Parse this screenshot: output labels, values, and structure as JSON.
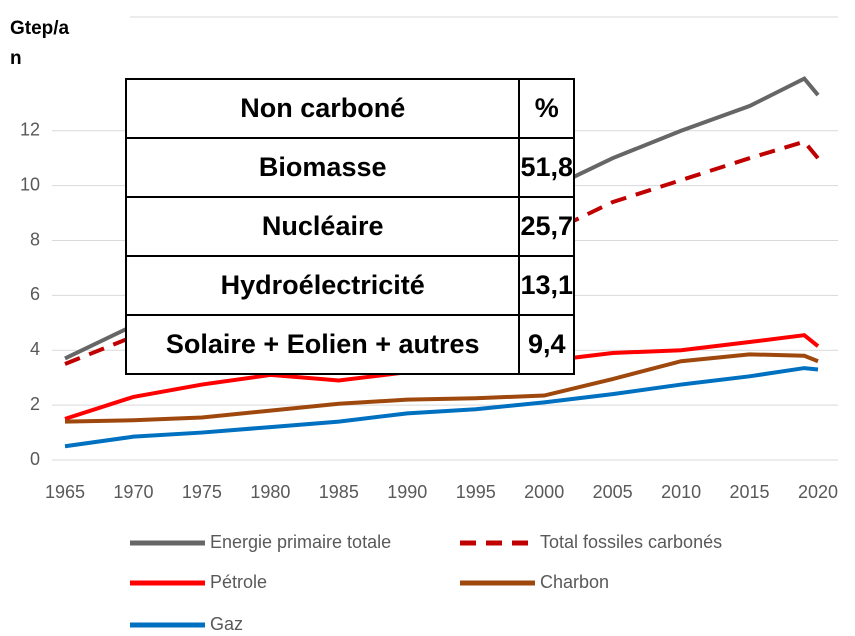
{
  "chart_data": {
    "type": "line",
    "y_label": "Gtep/an",
    "x": [
      1965,
      1970,
      1975,
      1980,
      1985,
      1990,
      1995,
      2000,
      2005,
      2010,
      2015,
      2019,
      2020
    ],
    "series": [
      {
        "name": "Energie primaire totale",
        "color": "#666666",
        "dash": false,
        "values": [
          3.7,
          4.9,
          5.8,
          6.8,
          7.5,
          8.4,
          9.0,
          9.8,
          11.0,
          12.0,
          12.9,
          13.9,
          13.3
        ]
      },
      {
        "name": "Total fossiles carbonés",
        "color": "#c00000",
        "dash": true,
        "values": [
          3.5,
          4.5,
          5.3,
          6.0,
          6.5,
          7.3,
          7.6,
          8.2,
          9.4,
          10.2,
          11.0,
          11.6,
          11.0
        ]
      },
      {
        "name": "Pétrole",
        "color": "#ff0000",
        "dash": false,
        "values": [
          1.5,
          2.3,
          2.75,
          3.1,
          2.9,
          3.2,
          3.4,
          3.6,
          3.9,
          4.0,
          4.3,
          4.55,
          4.15
        ]
      },
      {
        "name": "Charbon",
        "color": "#9e480e",
        "dash": false,
        "values": [
          1.4,
          1.45,
          1.55,
          1.8,
          2.05,
          2.2,
          2.25,
          2.35,
          2.95,
          3.6,
          3.85,
          3.8,
          3.6
        ]
      },
      {
        "name": "Gaz",
        "color": "#0070c0",
        "dash": false,
        "values": [
          0.5,
          0.85,
          1.0,
          1.2,
          1.4,
          1.7,
          1.85,
          2.1,
          2.4,
          2.75,
          3.05,
          3.35,
          3.3
        ]
      }
    ],
    "xlim": [
      1965,
      2020
    ],
    "xticks": [
      1965,
      1970,
      1975,
      1980,
      1985,
      1990,
      1995,
      2000,
      2005,
      2010,
      2015,
      2020
    ],
    "ylim": [
      0,
      16
    ],
    "yticks": [
      0,
      2,
      4,
      6,
      8,
      10,
      12
    ],
    "grid": true
  },
  "table": {
    "header": [
      "Non carboné",
      "%"
    ],
    "rows": [
      [
        "Biomasse",
        "51,8"
      ],
      [
        "Nucléaire",
        "25,7"
      ],
      [
        "Hydroélectricité",
        "13,1"
      ],
      [
        "Solaire + Eolien + autres",
        "9,4"
      ]
    ]
  }
}
